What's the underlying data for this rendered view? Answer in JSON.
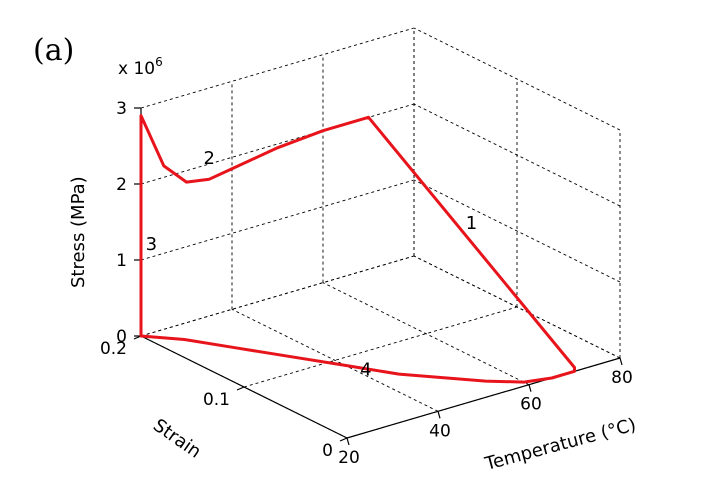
{
  "panel_label": "(a)",
  "chart_data": {
    "type": "line",
    "projection": "3d",
    "xlabel": "Temperature (°C)",
    "ylabel": "Strain",
    "zlabel": "Stress (MPa)",
    "z_multiplier": "x 10",
    "z_multiplier_exp": "6",
    "xlim": [
      20,
      80
    ],
    "ylim": [
      0,
      0.2
    ],
    "zlim": [
      0,
      3
    ],
    "x_ticks": [
      "20",
      "40",
      "60",
      "80"
    ],
    "y_ticks": [
      "0",
      "0.1",
      "0.2"
    ],
    "z_ticks": [
      "0",
      "1",
      "2",
      "3"
    ],
    "grid": true,
    "color": "#e8141b",
    "annotations": [
      {
        "text": "1",
        "x": 70,
        "y": 0.1,
        "z": 1.2
      },
      {
        "text": "2",
        "x": 35,
        "y": 0.2,
        "z": 2.0
      },
      {
        "text": "3",
        "x": 20,
        "y": 0.19,
        "z": 1.2
      },
      {
        "text": "4",
        "x": 40,
        "y": 0.07,
        "z": 0
      }
    ],
    "points": [
      {
        "x": 70,
        "y": 0,
        "z": 0
      },
      {
        "x": 70,
        "y": 0,
        "z": 0.05
      },
      {
        "x": 70,
        "y": 0.2,
        "z": 2.0
      },
      {
        "x": 60,
        "y": 0.2,
        "z": 2.0
      },
      {
        "x": 50,
        "y": 0.2,
        "z": 1.95
      },
      {
        "x": 40,
        "y": 0.2,
        "z": 1.85
      },
      {
        "x": 35,
        "y": 0.2,
        "z": 1.8
      },
      {
        "x": 30,
        "y": 0.2,
        "z": 1.85
      },
      {
        "x": 25,
        "y": 0.2,
        "z": 2.15
      },
      {
        "x": 20,
        "y": 0.2,
        "z": 2.9
      },
      {
        "x": 20,
        "y": 0.2,
        "z": 0
      },
      {
        "x": 25,
        "y": 0.18,
        "z": 0
      },
      {
        "x": 30,
        "y": 0.15,
        "z": 0
      },
      {
        "x": 35,
        "y": 0.12,
        "z": 0
      },
      {
        "x": 40,
        "y": 0.09,
        "z": 0
      },
      {
        "x": 45,
        "y": 0.06,
        "z": 0
      },
      {
        "x": 50,
        "y": 0.04,
        "z": 0
      },
      {
        "x": 55,
        "y": 0.02,
        "z": 0
      },
      {
        "x": 60,
        "y": 0.005,
        "z": 0
      },
      {
        "x": 65,
        "y": 0,
        "z": 0
      },
      {
        "x": 70,
        "y": 0,
        "z": 0
      }
    ]
  }
}
